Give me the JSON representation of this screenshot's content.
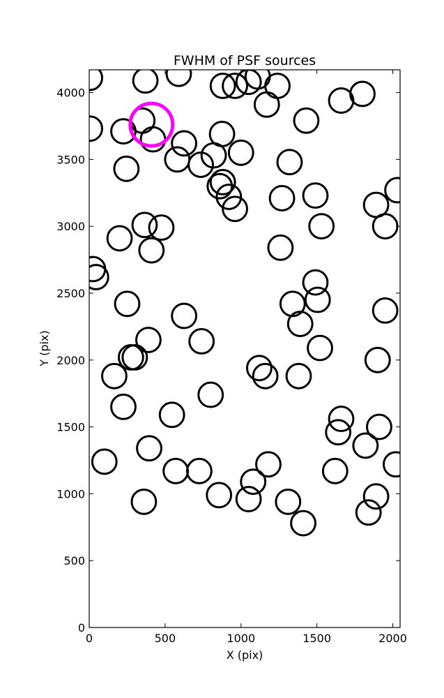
{
  "chart_data": {
    "type": "scatter",
    "title": "FWHM of PSF sources",
    "xlabel": "X (pix)",
    "ylabel": "Y (pix)",
    "xlim": [
      0,
      2048
    ],
    "ylim": [
      0,
      4170
    ],
    "xticks": [
      0,
      500,
      1000,
      1500,
      2000
    ],
    "yticks": [
      0,
      500,
      1000,
      1500,
      2000,
      2500,
      3000,
      3500,
      4000
    ],
    "xtick_labels": [
      "0",
      "500",
      "1000",
      "1500",
      "2000"
    ],
    "ytick_labels": [
      "0",
      "500",
      "1000",
      "1500",
      "2000",
      "2500",
      "3000",
      "3500",
      "4000"
    ],
    "grid": false,
    "marker": "open-circle",
    "colors": {
      "default": "#000000",
      "highlight": "#ff00ff"
    },
    "series": [
      {
        "x": [
          5,
          370,
          590,
          880,
          960,
          1050,
          1110,
          1170,
          1240,
          1660,
          1800,
          5,
          225,
          350,
          420,
          625,
          580,
          735,
          820,
          875,
          1000,
          1320,
          1430,
          1490,
          1270,
          1530,
          1890,
          1950,
          2030,
          200,
          365,
          475,
          410,
          245,
          860,
          880,
          920,
          960,
          1260,
          25,
          45,
          250,
          300,
          625,
          740,
          1340,
          1390,
          1490,
          1505,
          1520,
          1950,
          1900,
          165,
          275,
          390,
          1120,
          1160,
          1380,
          225,
          800,
          545,
          395,
          100,
          570,
          725,
          855,
          1050,
          1080,
          1180,
          1310,
          1410,
          1640,
          1660,
          1820,
          1910,
          2020,
          1620,
          1890,
          1840,
          360
        ],
        "y": [
          4110,
          4090,
          4140,
          4050,
          4050,
          4080,
          4120,
          3910,
          4050,
          3940,
          3990,
          3730,
          3710,
          3790,
          3650,
          3620,
          3500,
          3460,
          3530,
          3690,
          3550,
          3480,
          3790,
          3230,
          3210,
          3000,
          3160,
          3000,
          3270,
          2910,
          3010,
          2990,
          2820,
          3430,
          3300,
          3330,
          3220,
          3130,
          2840,
          2680,
          2620,
          2420,
          2020,
          2330,
          2140,
          2420,
          2270,
          2580,
          2450,
          2090,
          2370,
          2000,
          1880,
          2020,
          2150,
          1940,
          1880,
          1880,
          1650,
          1740,
          1590,
          1340,
          1240,
          1170,
          1170,
          990,
          960,
          1090,
          1220,
          940,
          780,
          1460,
          1560,
          1360,
          1500,
          1220,
          1170,
          980,
          860,
          940
        ],
        "sizes_pix": 80
      },
      {
        "x": [
          410
        ],
        "y": [
          3760
        ],
        "sizes_pix": 140
      }
    ]
  }
}
